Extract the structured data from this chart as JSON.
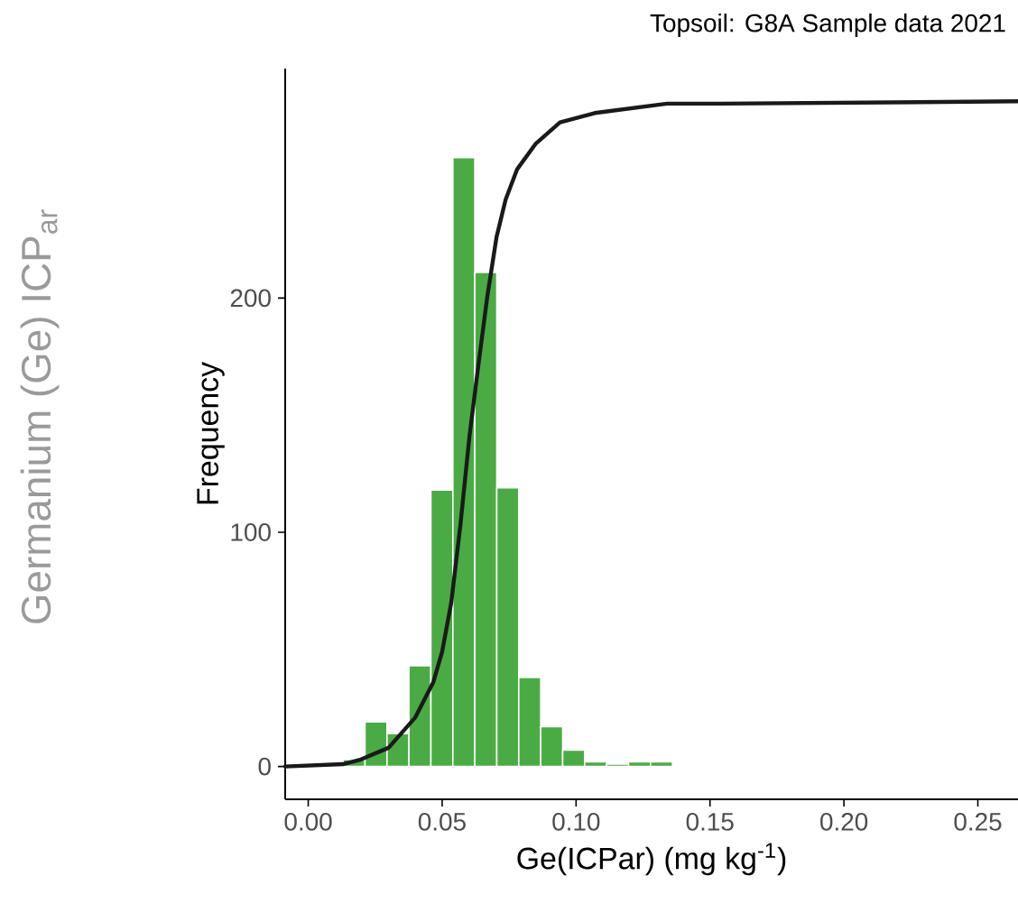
{
  "chart_data": {
    "type": "histogram",
    "title": "Topsoil: G8A Sample data 2021",
    "xlabel": "Ge(ICPar) (mg kg$^{-1}$)",
    "ylabel": "Frequency",
    "annotations": [
      "Germanium (Ge) ICP$_{ar}$"
    ],
    "bins": [
      0.013,
      0.0212,
      0.0294,
      0.0376,
      0.0458,
      0.054,
      0.0622,
      0.0704,
      0.0786,
      0.0868,
      0.095,
      0.1032,
      0.1114,
      0.1196,
      0.1278,
      0.136
    ],
    "values": [
      3,
      19,
      14,
      43,
      118,
      260,
      211,
      119,
      38,
      17,
      7,
      2,
      1,
      2,
      2
    ],
    "color": "#4aab44",
    "series": [
      {
        "type": "line",
        "color": "#1a1a1a",
        "x": [
          -0.0086,
          0.013,
          0.0197,
          0.03,
          0.04,
          0.0467,
          0.05,
          0.0534,
          0.0568,
          0.0602,
          0.0636,
          0.0669,
          0.0703,
          0.0737,
          0.078,
          0.085,
          0.094,
          0.107,
          0.134,
          0.1545,
          0.265
        ],
        "values": [
          0,
          1,
          3,
          8,
          21,
          36,
          49,
          70,
          103,
          141,
          172,
          201,
          226,
          242,
          255,
          266,
          275,
          279,
          283,
          283,
          284
        ]
      }
    ],
    "xlim": [
      -0.0086,
      0.265
    ],
    "ylim": [
      -14,
      298
    ],
    "xticks": [
      {
        "value": 0,
        "label": "0.00"
      },
      {
        "value": 0.05,
        "label": "0.05"
      },
      {
        "value": 0.1,
        "label": "0.10"
      },
      {
        "value": 0.15,
        "label": "0.15"
      },
      {
        "value": 0.2,
        "label": "0.20"
      },
      {
        "value": 0.25,
        "label": "0.25"
      }
    ],
    "yticks": [
      0,
      100,
      200
    ]
  }
}
